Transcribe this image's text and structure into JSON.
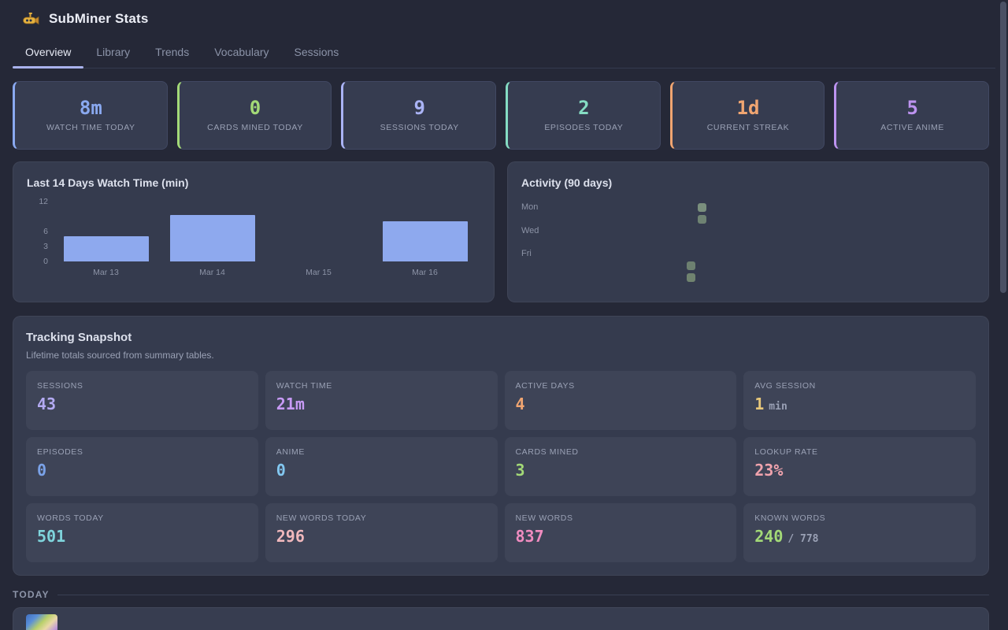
{
  "app": {
    "title": "SubMiner Stats",
    "logo": "submarine-icon"
  },
  "tabs": [
    {
      "label": "Overview",
      "active": true
    },
    {
      "label": "Library",
      "active": false
    },
    {
      "label": "Trends",
      "active": false
    },
    {
      "label": "Vocabulary",
      "active": false
    },
    {
      "label": "Sessions",
      "active": false
    }
  ],
  "stat_cards": [
    {
      "value": "8m",
      "label": "WATCH TIME TODAY",
      "color": "#8aa9f0"
    },
    {
      "value": "0",
      "label": "CARDS MINED TODAY",
      "color": "#a3d977"
    },
    {
      "value": "9",
      "label": "SESSIONS TODAY",
      "color": "#aab3f5"
    },
    {
      "value": "2",
      "label": "EPISODES TODAY",
      "color": "#85dcc3"
    },
    {
      "value": "1d",
      "label": "CURRENT STREAK",
      "color": "#f0a571"
    },
    {
      "value": "5",
      "label": "ACTIVE ANIME",
      "color": "#bd93f0"
    }
  ],
  "chart_data": [
    {
      "type": "bar",
      "title": "Last 14 Days Watch Time (min)",
      "categories": [
        "Mar 13",
        "Mar 14",
        "Mar 15",
        "Mar 16"
      ],
      "values": [
        5,
        9.3,
        0,
        8.1
      ],
      "yticks": [
        0,
        3,
        6,
        12
      ],
      "ylim": [
        0,
        12
      ],
      "bar_color": "#8ea9ee",
      "grid": false,
      "legend": false
    },
    {
      "type": "heatmap",
      "title": "Activity (90 days)",
      "row_labels": [
        {
          "text": "Mon",
          "row": 0
        },
        {
          "text": "Wed",
          "row": 2
        },
        {
          "text": "Fri",
          "row": 4
        }
      ],
      "rows": 7,
      "cols": 14,
      "active_cells": [
        {
          "col": 12,
          "row": 5,
          "color": "#6d8070"
        },
        {
          "col": 12,
          "row": 6,
          "color": "#70836f"
        },
        {
          "col": 13,
          "row": 0,
          "color": "#7a8f7d"
        },
        {
          "col": 13,
          "row": 1,
          "color": "#6e8272"
        }
      ]
    }
  ],
  "snapshot": {
    "title": "Tracking Snapshot",
    "subtitle": "Lifetime totals sourced from summary tables.",
    "tiles": [
      {
        "label": "SESSIONS",
        "value": "43",
        "suffix": "",
        "color": "#b3aaf2"
      },
      {
        "label": "WATCH TIME",
        "value": "21m",
        "suffix": "",
        "color": "#c79af5"
      },
      {
        "label": "ACTIVE DAYS",
        "value": "4",
        "suffix": "",
        "color": "#f0a571"
      },
      {
        "label": "AVG SESSION",
        "value": "1",
        "suffix": "min",
        "color": "#e8c87a"
      },
      {
        "label": "EPISODES",
        "value": "0",
        "suffix": "",
        "color": "#7aa2e8"
      },
      {
        "label": "ANIME",
        "value": "0",
        "suffix": "",
        "color": "#82c7f0"
      },
      {
        "label": "CARDS MINED",
        "value": "3",
        "suffix": "",
        "color": "#a3d977"
      },
      {
        "label": "LOOKUP RATE",
        "value": "23%",
        "suffix": "",
        "color": "#f0a3ad"
      },
      {
        "label": "WORDS TODAY",
        "value": "501",
        "suffix": "",
        "color": "#7fd4dc"
      },
      {
        "label": "NEW WORDS TODAY",
        "value": "296",
        "suffix": "",
        "color": "#f0b8bc"
      },
      {
        "label": "NEW WORDS",
        "value": "837",
        "suffix": "",
        "color": "#f08cc0"
      },
      {
        "label": "KNOWN WORDS",
        "value": "240",
        "suffix": "/ 778",
        "color": "#a3d977"
      }
    ]
  },
  "today": {
    "label": "TODAY",
    "thumbnail": "anime-cover-art"
  }
}
